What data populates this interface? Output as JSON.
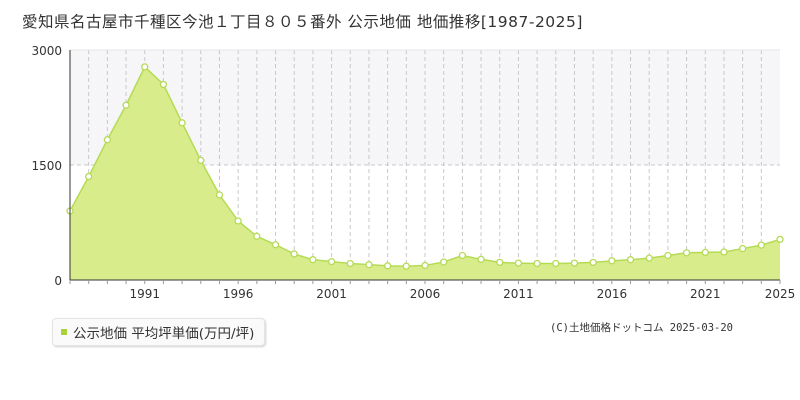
{
  "header": {
    "title": "愛知県名古屋市千種区今池１丁目８０５番外 公示地価 地価推移[1987-2025]"
  },
  "legend": {
    "label": "公示地価 平均坪単価(万円/坪)"
  },
  "footer": {
    "credit": "(C)土地価格ドットコム 2025-03-20"
  },
  "colors": {
    "area_fill": "#d8ec8c",
    "line": "#b5db55",
    "marker_fill": "#ffffff",
    "marker_stroke": "#b5db55",
    "legend_marker": "#a8d23a",
    "band": "#f6f5f8",
    "grid_dashed": "#c8c8c8",
    "grid_solid": "#e6e6e6"
  },
  "chart_data": {
    "type": "area",
    "title": "愛知県名古屋市千種区今池１丁目８０５番外 公示地価 地価推移[1987-2025]",
    "xlabel": "",
    "ylabel": "",
    "xlim": [
      1987,
      2025
    ],
    "ylim": [
      0,
      3000
    ],
    "y_ticks": [
      0,
      1500,
      3000
    ],
    "x_tick_labels": [
      1991,
      1996,
      2001,
      2006,
      2011,
      2016,
      2021,
      2025
    ],
    "grid": true,
    "legend_position": "bottom-left",
    "series": [
      {
        "name": "公示地価 平均坪単価(万円/坪)",
        "x": [
          1987,
          1988,
          1989,
          1990,
          1991,
          1992,
          1993,
          1994,
          1995,
          1996,
          1997,
          1998,
          1999,
          2000,
          2001,
          2002,
          2003,
          2004,
          2005,
          2006,
          2007,
          2008,
          2009,
          2010,
          2011,
          2012,
          2013,
          2014,
          2015,
          2016,
          2017,
          2018,
          2019,
          2020,
          2021,
          2022,
          2023,
          2024,
          2025
        ],
        "values": [
          900,
          1350,
          1830,
          2280,
          2780,
          2550,
          2050,
          1560,
          1110,
          770,
          570,
          460,
          340,
          265,
          240,
          215,
          200,
          185,
          180,
          190,
          235,
          320,
          270,
          230,
          220,
          215,
          215,
          220,
          230,
          250,
          265,
          285,
          320,
          355,
          360,
          365,
          410,
          455,
          530
        ]
      }
    ]
  }
}
